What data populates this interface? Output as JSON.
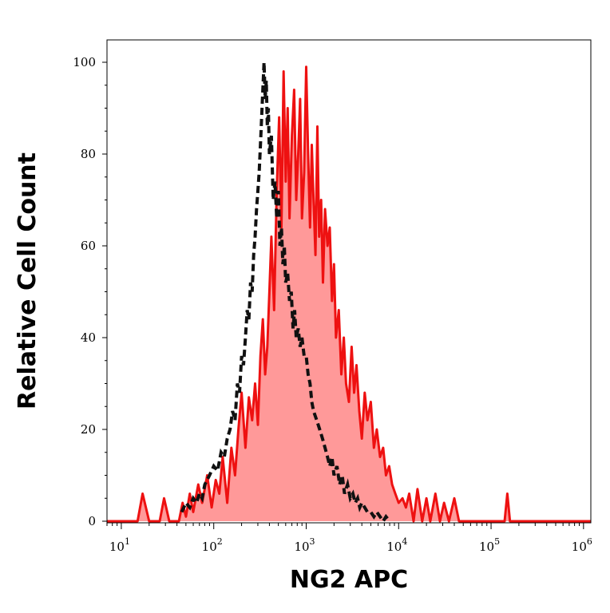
{
  "chart_data": {
    "type": "area",
    "title": "",
    "xlabel": "NG2 APC",
    "ylabel": "Relative Cell Count",
    "x_scale": "log",
    "xlim": [
      7,
      1200000
    ],
    "ylim": [
      0,
      100
    ],
    "y_ticks": [
      {
        "value": 0,
        "label": "0"
      },
      {
        "value": 20,
        "label": "20"
      },
      {
        "value": 40,
        "label": "40"
      },
      {
        "value": 60,
        "label": "60"
      },
      {
        "value": 80,
        "label": "80"
      },
      {
        "value": 100,
        "label": "100"
      }
    ],
    "x_ticks": [
      {
        "value": 10,
        "base": "10",
        "exp": "1"
      },
      {
        "value": 100,
        "base": "10",
        "exp": "2"
      },
      {
        "value": 1000,
        "base": "10",
        "exp": "3"
      },
      {
        "value": 10000,
        "base": "10",
        "exp": "4"
      },
      {
        "value": 100000,
        "base": "10",
        "exp": "5"
      },
      {
        "value": 1000000,
        "base": "10",
        "exp": "6"
      }
    ],
    "grid": false,
    "legend": "none",
    "series": [
      {
        "style": "filled",
        "line_color": "#ee1111",
        "fill_color": "#ff9999",
        "x": [
          7,
          15,
          17,
          20,
          26,
          29,
          33,
          42,
          46,
          50,
          55,
          60,
          68,
          75,
          85,
          95,
          105,
          115,
          125,
          140,
          155,
          170,
          185,
          200,
          220,
          240,
          260,
          280,
          300,
          320,
          340,
          360,
          380,
          400,
          420,
          450,
          480,
          510,
          540,
          570,
          600,
          630,
          660,
          700,
          740,
          780,
          820,
          860,
          900,
          950,
          1000,
          1050,
          1100,
          1150,
          1200,
          1260,
          1320,
          1380,
          1450,
          1520,
          1600,
          1700,
          1800,
          1900,
          2000,
          2100,
          2250,
          2400,
          2550,
          2700,
          2900,
          3100,
          3300,
          3500,
          3750,
          4000,
          4300,
          4600,
          5000,
          5400,
          5800,
          6300,
          6800,
          7300,
          7900,
          8500,
          9200,
          10000,
          11000,
          12000,
          13000,
          14500,
          16000,
          18000,
          20000,
          22000,
          25000,
          28000,
          31000,
          35000,
          40000,
          45000,
          60000,
          100000,
          140000,
          150000,
          160000,
          180000,
          300000,
          1200000
        ],
        "y": [
          0,
          0,
          6,
          0,
          0,
          5,
          0,
          0,
          4,
          1,
          6,
          2,
          8,
          4,
          10,
          3,
          9,
          6,
          14,
          4,
          16,
          10,
          20,
          28,
          16,
          27,
          22,
          30,
          21,
          36,
          44,
          32,
          38,
          50,
          62,
          46,
          72,
          88,
          64,
          98,
          74,
          90,
          66,
          84,
          94,
          70,
          80,
          92,
          66,
          76,
          99,
          80,
          64,
          82,
          70,
          58,
          86,
          62,
          70,
          52,
          68,
          60,
          64,
          48,
          56,
          40,
          46,
          32,
          40,
          30,
          26,
          38,
          28,
          34,
          24,
          18,
          28,
          22,
          26,
          16,
          20,
          14,
          16,
          10,
          12,
          8,
          6,
          4,
          5,
          3,
          6,
          0,
          7,
          0,
          5,
          0,
          6,
          0,
          4,
          0,
          5,
          0,
          0,
          0,
          0,
          6,
          0,
          0,
          0,
          0
        ]
      },
      {
        "style": "dashed",
        "line_color": "#111111",
        "x": [
          45,
          50,
          55,
          60,
          65,
          70,
          75,
          80,
          90,
          100,
          110,
          120,
          130,
          140,
          150,
          160,
          170,
          180,
          190,
          200,
          210,
          220,
          230,
          240,
          250,
          260,
          270,
          280,
          290,
          300,
          310,
          320,
          330,
          340,
          350,
          360,
          370,
          380,
          390,
          400,
          420,
          440,
          460,
          480,
          500,
          520,
          540,
          560,
          580,
          600,
          630,
          660,
          690,
          720,
          750,
          780,
          820,
          860,
          900,
          950,
          1000,
          1050,
          1100,
          1150,
          1200,
          1300,
          1400,
          1500,
          1600,
          1700,
          1800,
          1900,
          2000,
          2150,
          2300,
          2450,
          2600,
          2800,
          3000,
          3200,
          3400,
          3600,
          3800,
          4000,
          4300,
          4600,
          5000,
          5400,
          5800,
          6300,
          6800,
          7300,
          8000
        ],
        "y": [
          2,
          4,
          3,
          5,
          4,
          6,
          5,
          8,
          10,
          12,
          11,
          15,
          14,
          18,
          20,
          24,
          22,
          30,
          28,
          36,
          34,
          40,
          46,
          44,
          52,
          50,
          58,
          62,
          68,
          72,
          76,
          82,
          88,
          94,
          100,
          92,
          96,
          86,
          90,
          80,
          84,
          70,
          74,
          66,
          72,
          60,
          64,
          56,
          60,
          52,
          54,
          48,
          50,
          42,
          46,
          40,
          42,
          38,
          40,
          36,
          36,
          32,
          30,
          26,
          24,
          22,
          20,
          18,
          16,
          14,
          12,
          14,
          10,
          12,
          8,
          10,
          6,
          8,
          5,
          6,
          4,
          5,
          3,
          4,
          3,
          2,
          2,
          1,
          2,
          1,
          0,
          1,
          0
        ]
      }
    ]
  }
}
